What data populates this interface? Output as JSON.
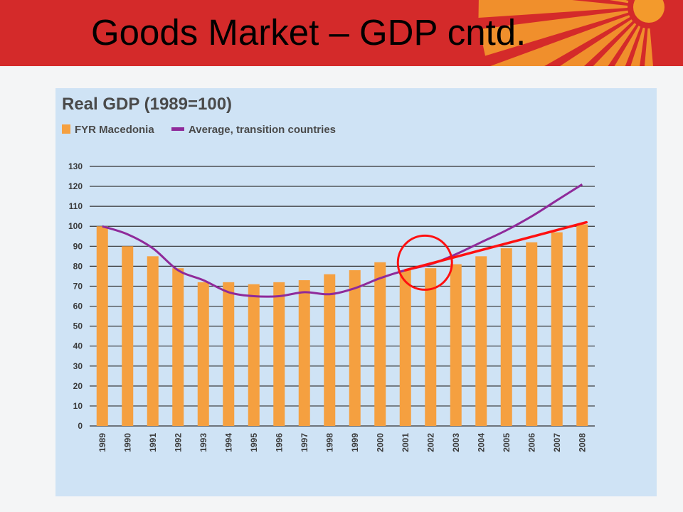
{
  "slide": {
    "title": "Goods Market – GDP cntd."
  },
  "colors": {
    "header_bg": "#d42a2a",
    "sun_rays": "#f39a2c",
    "panel_bg": "#cfe3f5",
    "bar": "#f5a040",
    "line": "#8f2a9a",
    "trend": "#ff1010",
    "circle": "#ff1010"
  },
  "chart_data": {
    "type": "bar",
    "title": "Real GDP (1989=100)",
    "xlabel": "",
    "ylabel": "",
    "categories": [
      "1989",
      "1990",
      "1991",
      "1992",
      "1993",
      "1994",
      "1995",
      "1996",
      "1997",
      "1998",
      "1999",
      "2000",
      "2001",
      "2002",
      "2003",
      "2004",
      "2005",
      "2006",
      "2007",
      "2008"
    ],
    "series": [
      {
        "name": "FYR Macedonia",
        "kind": "bar",
        "values": [
          100,
          90,
          85,
          79,
          72,
          72,
          71,
          72,
          73,
          76,
          78,
          82,
          78,
          79,
          81,
          85,
          89,
          92,
          97,
          101
        ]
      },
      {
        "name": "Average, transition countries",
        "kind": "line",
        "values": [
          100,
          96,
          89,
          78,
          73,
          67,
          65,
          65,
          67,
          66,
          69,
          74,
          78,
          81,
          86,
          92,
          98,
          105,
          113,
          121
        ]
      }
    ],
    "annotations": [
      {
        "kind": "trend-line",
        "from_category": "2001",
        "from_value": 78,
        "to_category": "2008",
        "to_value": 102
      },
      {
        "kind": "circle",
        "category": "2002",
        "value": 80
      }
    ],
    "ylim": [
      0,
      130
    ],
    "yticks": [
      0,
      10,
      20,
      30,
      40,
      50,
      60,
      70,
      80,
      90,
      100,
      110,
      120,
      130
    ],
    "grid": true,
    "legend_position": "top-left"
  }
}
